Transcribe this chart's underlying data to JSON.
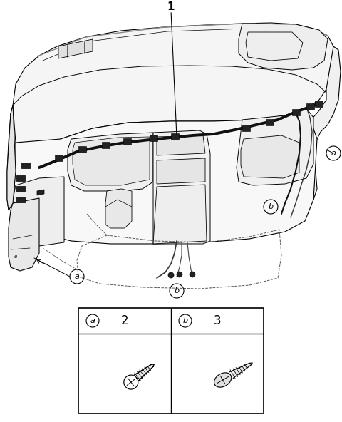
{
  "bg_color": "#ffffff",
  "line_color": "#000000",
  "fig_width": 4.8,
  "fig_height": 5.92,
  "dpi": 100,
  "label_1": "1",
  "label_a": "a",
  "label_b": "b",
  "table_label_a": "a",
  "table_label_b": "b",
  "table_num_a": "2",
  "table_num_b": "3",
  "gray_fill": "#e8e8e8",
  "dark_fill": "#222222",
  "mid_fill": "#aaaaaa"
}
